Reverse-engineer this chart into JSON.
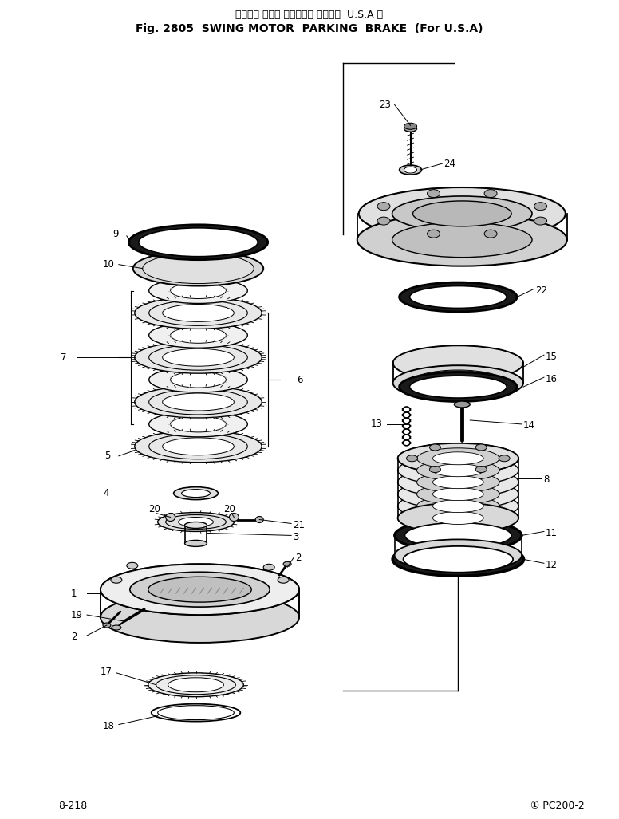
{
  "title_jp": "スイング モータ パーキング ブレーキ  U.S.A 向",
  "title_en": "Fig. 2805  SWING MOTOR  PARKING  BRAKE  (For U.S.A)",
  "footer_left": "8-218",
  "footer_right": "① PC200-2",
  "bg_color": "#ffffff",
  "text_color": "#000000",
  "line_color": "#000000",
  "lw_main": 1.5,
  "lw_thin": 0.8,
  "lw_heavy": 2.5
}
